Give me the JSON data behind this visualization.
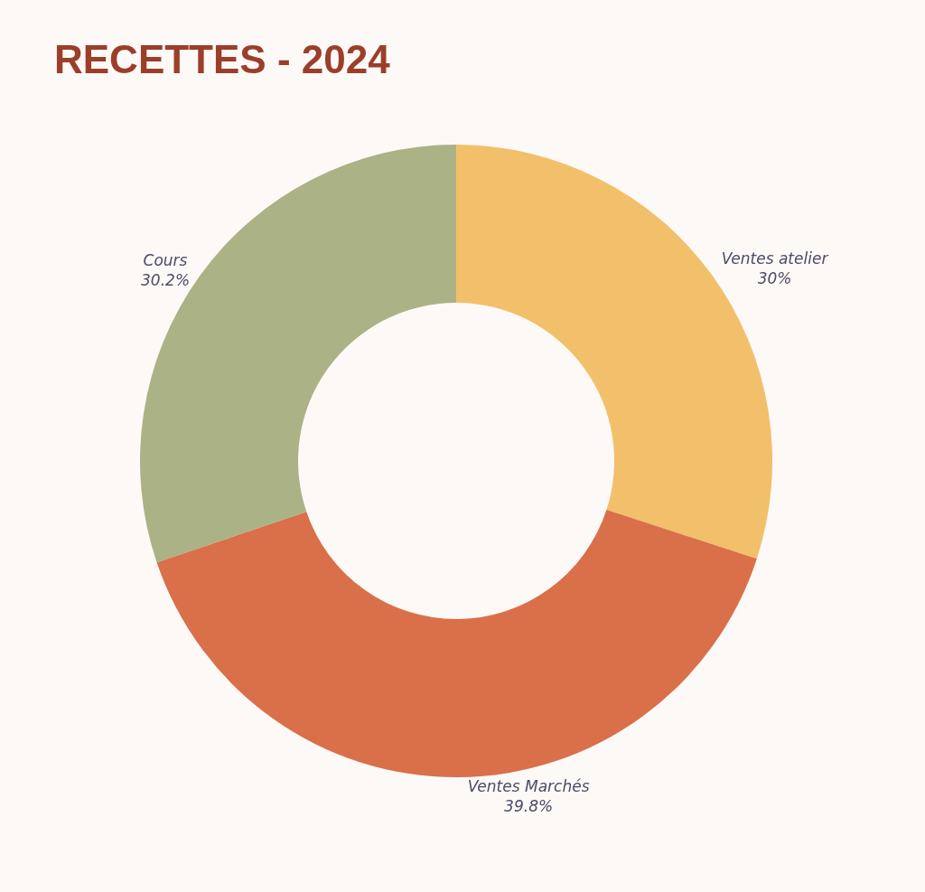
{
  "chart_data": {
    "type": "donut",
    "title": "RECETTES - 2024",
    "categories": [
      "Ventes atelier",
      "Ventes Marchés",
      "Cours"
    ],
    "values": [
      30,
      39.8,
      30.2
    ],
    "value_labels": [
      "30%",
      "39.8%",
      "30.2%"
    ],
    "colors": [
      "#f2c06b",
      "#d9704a",
      "#abb286"
    ]
  }
}
